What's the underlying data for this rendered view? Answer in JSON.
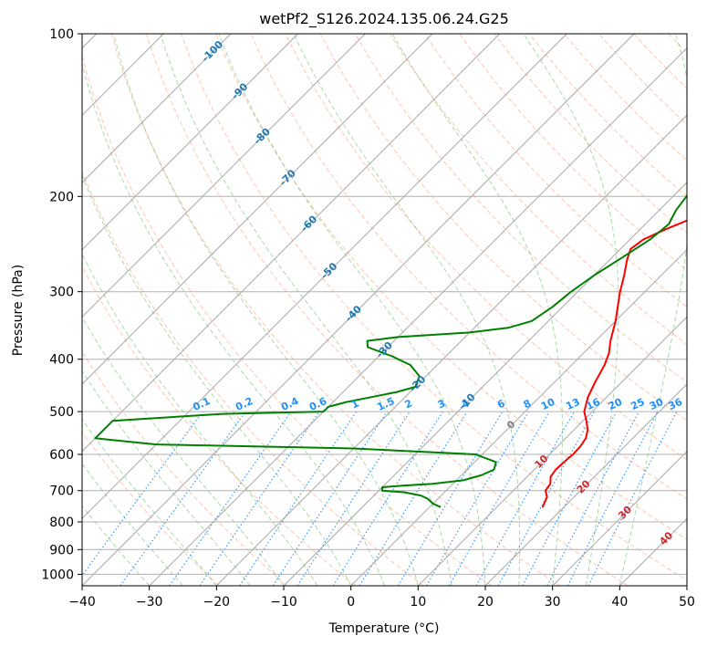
{
  "chart_data": {
    "type": "line",
    "title": "wetPf2_S126.2024.135.06.24.G25",
    "xlabel": "Temperature (°C)",
    "ylabel": "Pressure (hPa)",
    "xlim": [
      -40,
      50
    ],
    "ylim": [
      1050,
      100
    ],
    "y_scale": "log",
    "grid": true,
    "x_ticks": [
      -40,
      -30,
      -20,
      -10,
      0,
      10,
      20,
      30,
      40,
      50
    ],
    "y_ticks": [
      100,
      200,
      300,
      400,
      500,
      600,
      700,
      800,
      900,
      1000
    ],
    "series": [
      {
        "color": "#ff0000",
        "points": [
          [
            16.8,
            750
          ],
          [
            16.0,
            720
          ],
          [
            14.8,
            700
          ],
          [
            14.5,
            680
          ],
          [
            13.5,
            660
          ],
          [
            13.2,
            640
          ],
          [
            13.3,
            620
          ],
          [
            13.5,
            600
          ],
          [
            13.4,
            580
          ],
          [
            13.0,
            560
          ],
          [
            12.0,
            540
          ],
          [
            10.5,
            520
          ],
          [
            8.8,
            500
          ],
          [
            7.2,
            470
          ],
          [
            6.0,
            440
          ],
          [
            4.9,
            410
          ],
          [
            3.8,
            390
          ],
          [
            2.2,
            370
          ],
          [
            0.0,
            340
          ],
          [
            -1.8,
            320
          ],
          [
            -3.7,
            300
          ],
          [
            -5.5,
            280
          ],
          [
            -7.4,
            262
          ],
          [
            -8.5,
            250
          ],
          [
            -8.0,
            240
          ],
          [
            -6.2,
            230
          ],
          [
            -4.0,
            220
          ],
          [
            -3.0,
            210
          ],
          [
            -2.8,
            200
          ],
          [
            -2.6,
            180
          ],
          [
            0.5,
            172
          ],
          [
            4.0,
            165
          ],
          [
            8.0,
            158
          ],
          [
            12.0,
            150
          ],
          [
            13.5,
            143
          ],
          [
            14.0,
            135
          ],
          [
            15.5,
            127
          ],
          [
            18.0,
            120
          ],
          [
            20.0,
            115
          ],
          [
            20.5,
            110
          ],
          [
            22.0,
            104
          ],
          [
            23.0,
            100
          ]
        ]
      },
      {
        "color": "#008000",
        "points": [
          [
            1.5,
            750
          ],
          [
            0.0,
            740
          ],
          [
            -1.5,
            725
          ],
          [
            -3.0,
            715
          ],
          [
            -6.0,
            705
          ],
          [
            -9.5,
            700
          ],
          [
            -10.0,
            690
          ],
          [
            -7.0,
            685
          ],
          [
            -3.0,
            680
          ],
          [
            1.0,
            670
          ],
          [
            3.0,
            655
          ],
          [
            4.0,
            640
          ],
          [
            3.2,
            620
          ],
          [
            -1.0,
            600
          ],
          [
            -20.0,
            585
          ],
          [
            -50.0,
            575
          ],
          [
            -60.0,
            560
          ],
          [
            -60.0,
            520
          ],
          [
            -45.0,
            505
          ],
          [
            -30.0,
            500
          ],
          [
            -30.0,
            490
          ],
          [
            -28.0,
            480
          ],
          [
            -25.0,
            470
          ],
          [
            -22.0,
            460
          ],
          [
            -20.0,
            450
          ],
          [
            -21.0,
            430
          ],
          [
            -24.0,
            410
          ],
          [
            -28.0,
            395
          ],
          [
            -33.0,
            380
          ],
          [
            -34.0,
            370
          ],
          [
            -30.0,
            364
          ],
          [
            -20.0,
            357
          ],
          [
            -15.0,
            350
          ],
          [
            -12.5,
            340
          ],
          [
            -11.5,
            320
          ],
          [
            -11.0,
            300
          ],
          [
            -10.0,
            280
          ],
          [
            -8.5,
            260
          ],
          [
            -7.0,
            240
          ],
          [
            -6.5,
            225
          ],
          [
            -7.5,
            212
          ],
          [
            -8.0,
            200
          ],
          [
            -8.5,
            185
          ],
          [
            -10.5,
            170
          ],
          [
            -13.0,
            160
          ],
          [
            -12.0,
            155
          ],
          [
            -8.0,
            150
          ],
          [
            -5.0,
            145
          ],
          [
            -4.0,
            138
          ],
          [
            -6.0,
            131
          ],
          [
            -7.0,
            126
          ],
          [
            -5.5,
            120
          ],
          [
            -2.5,
            115
          ],
          [
            -0.5,
            110
          ],
          [
            0.5,
            105
          ],
          [
            1.0,
            100
          ]
        ]
      }
    ],
    "mixing_ratio_labels": [
      "0.1",
      "0.2",
      "0.4",
      "0.6",
      "1",
      "1.5",
      "2",
      "3",
      "4",
      "6",
      "8",
      "10",
      "13",
      "16",
      "20",
      "25",
      "30",
      "36"
    ],
    "isotherm_labels": [
      "-100",
      "-90",
      "-80",
      "-70",
      "-60",
      "-50",
      "-40",
      "-30",
      "-20",
      "-10"
    ],
    "zero_label": "0",
    "warm_labels": [
      "10",
      "20",
      "30",
      "40"
    ],
    "colors": {
      "isotherm_label": "#1f77b4",
      "mixing_ratio": "#1e90ff",
      "warm_label": "#d62728",
      "zero_label": "#808080",
      "dry_adiabat": "#ff7f50",
      "moist_adiabat": "#2ca02c",
      "isotherm_line": "#999999"
    }
  }
}
